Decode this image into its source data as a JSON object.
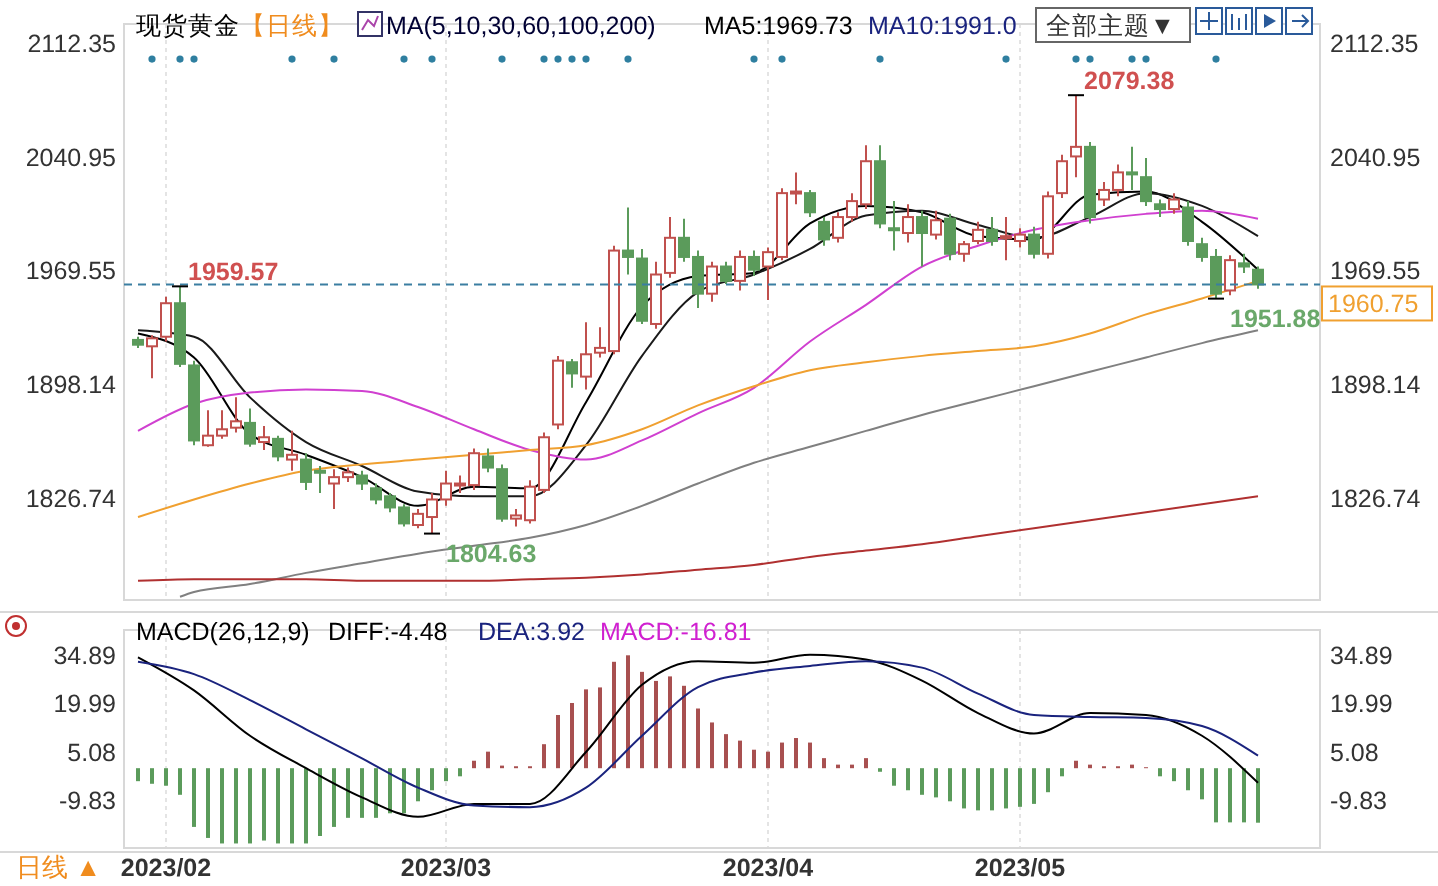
{
  "chart_data": [
    {
      "type": "candlestick",
      "title": "现货黄金",
      "subtitle": "【日线】",
      "legend_title": "MA(5,10,30,60,100,200)",
      "categories": [
        null,
        null,
        "2023/02",
        null,
        null,
        null,
        null,
        null,
        null,
        null,
        null,
        null,
        null,
        null,
        null,
        null,
        null,
        null,
        null,
        null,
        null,
        null,
        "2023/03",
        null,
        null,
        null,
        null,
        null,
        null,
        null,
        null,
        null,
        null,
        null,
        null,
        null,
        null,
        null,
        null,
        null,
        null,
        null,
        null,
        null,
        null,
        "2023/04",
        null,
        null,
        null,
        null,
        null,
        null,
        null,
        null,
        null,
        null,
        null,
        null,
        null,
        null,
        null,
        null,
        null,
        "2023/05",
        null,
        null,
        null,
        null,
        null,
        null,
        null,
        null,
        null,
        null,
        null,
        null,
        null,
        null,
        null,
        null,
        null
      ],
      "ohlc": [
        [
          1926,
          1928,
          1921,
          1923
        ],
        [
          1922,
          1929,
          1902,
          1927
        ],
        [
          1928,
          1953,
          1925,
          1949
        ],
        [
          1949,
          1959.57,
          1909,
          1911
        ],
        [
          1910,
          1913,
          1860,
          1863
        ],
        [
          1860,
          1882,
          1859,
          1866
        ],
        [
          1866,
          1882,
          1864,
          1870
        ],
        [
          1871,
          1890,
          1868,
          1875
        ],
        [
          1874,
          1883,
          1859,
          1861
        ],
        [
          1862,
          1872,
          1857,
          1865
        ],
        [
          1864,
          1866,
          1850,
          1853
        ],
        [
          1851,
          1869,
          1844,
          1854
        ],
        [
          1851,
          1855,
          1832,
          1837
        ],
        [
          1844,
          1847,
          1830,
          1843
        ],
        [
          1836,
          1845,
          1820,
          1840
        ],
        [
          1840,
          1846,
          1837,
          1843
        ],
        [
          1841,
          1844,
          1832,
          1836
        ],
        [
          1833,
          1836,
          1823,
          1826
        ],
        [
          1828,
          1830,
          1818,
          1821
        ],
        [
          1821,
          1823,
          1809,
          1811
        ],
        [
          1810,
          1820,
          1808,
          1817
        ],
        [
          1815,
          1830,
          1804.63,
          1826
        ],
        [
          1826,
          1844,
          1822,
          1836
        ],
        [
          1835,
          1841,
          1830,
          1836
        ],
        [
          1835,
          1858,
          1832,
          1855
        ],
        [
          1853,
          1858,
          1843,
          1846
        ],
        [
          1845,
          1848,
          1812,
          1814
        ],
        [
          1814,
          1820,
          1809,
          1816
        ],
        [
          1813,
          1838,
          1811,
          1834
        ],
        [
          1832,
          1868,
          1830,
          1865
        ],
        [
          1873,
          1916,
          1870,
          1913
        ],
        [
          1912,
          1914,
          1896,
          1905
        ],
        [
          1903,
          1937,
          1895,
          1917
        ],
        [
          1918,
          1934,
          1915,
          1921
        ],
        [
          1919,
          1985,
          1917,
          1982
        ],
        [
          1982,
          2009,
          1967,
          1978
        ],
        [
          1977,
          1983,
          1936,
          1938
        ],
        [
          1936,
          1975,
          1933,
          1967
        ],
        [
          1968,
          2003,
          1965,
          1990
        ],
        [
          1990,
          2002,
          1975,
          1978
        ],
        [
          1978,
          1982,
          1946,
          1955
        ],
        [
          1955,
          1975,
          1950,
          1972
        ],
        [
          1972,
          1975,
          1961,
          1963
        ],
        [
          1963,
          1982,
          1957,
          1978
        ],
        [
          1978,
          1982,
          1966,
          1970
        ],
        [
          1972,
          1984,
          1951,
          1981
        ],
        [
          1978,
          2021,
          1976,
          2018
        ],
        [
          2018,
          2031,
          2011,
          2019
        ],
        [
          2018,
          2020,
          2003,
          2006
        ],
        [
          2000,
          2003,
          1985,
          1989
        ],
        [
          1990,
          2006,
          1987,
          2003
        ],
        [
          2003,
          2018,
          2000,
          2013
        ],
        [
          2011,
          2048,
          2008,
          2038
        ],
        [
          2038,
          2048,
          1996,
          1999
        ],
        [
          1996,
          2013,
          1982,
          1995
        ],
        [
          1993,
          2011,
          1987,
          2003
        ],
        [
          2003,
          2007,
          1972,
          1993
        ],
        [
          1992,
          2007,
          1989,
          2001
        ],
        [
          2002,
          2005,
          1976,
          1980
        ],
        [
          1980,
          1988,
          1975,
          1986
        ],
        [
          1988,
          2000,
          1986,
          1995
        ],
        [
          1995,
          2003,
          1985,
          1988
        ],
        [
          1990,
          2003,
          1976,
          1991
        ],
        [
          1988,
          1996,
          1984,
          1992
        ],
        [
          1992,
          1997,
          1977,
          1980
        ],
        [
          1980,
          2019,
          1977,
          2016
        ],
        [
          2018,
          2042,
          2015,
          2038
        ],
        [
          2041,
          2079.38,
          2028,
          2047
        ],
        [
          2047,
          2050,
          1999,
          2003
        ],
        [
          2014,
          2025,
          2010,
          2020
        ],
        [
          2020,
          2036,
          2016,
          2031
        ],
        [
          2031,
          2047,
          2020,
          2030
        ],
        [
          2028,
          2040,
          2010,
          2013
        ],
        [
          2011,
          2014,
          2003,
          2008
        ],
        [
          2008,
          2018,
          2005,
          2014
        ],
        [
          2009,
          2013,
          1985,
          1988
        ],
        [
          1986,
          1990,
          1975,
          1978
        ],
        [
          1978,
          1983,
          1951.88,
          1955
        ],
        [
          1957,
          1979,
          1954,
          1976
        ],
        [
          1974,
          1980,
          1968,
          1972
        ],
        [
          1970,
          1972,
          1958,
          1960.75
        ]
      ],
      "series": [
        {
          "type": "line",
          "color": "#000000",
          "values": [
            1930,
            null,
            null,
            null,
            1915,
            null,
            null,
            null,
            1867,
            null,
            null,
            null,
            1854,
            null,
            null,
            null,
            1840,
            null,
            null,
            null,
            1822,
            null,
            null,
            null,
            1834,
            null,
            null,
            null,
            1833,
            null,
            null,
            null,
            1887,
            null,
            null,
            null,
            1947,
            null,
            null,
            null,
            1966,
            null,
            null,
            null,
            1968,
            null,
            null,
            null,
            1999,
            null,
            null,
            null,
            2010,
            null,
            null,
            null,
            2006,
            null,
            null,
            null,
            1991,
            null,
            null,
            null,
            1989,
            null,
            null,
            null,
            2017,
            null,
            null,
            null,
            2019,
            null,
            null,
            null,
            2000,
            null,
            null,
            null,
            1970
          ]
        },
        {
          "type": "line",
          "color": "#1a1a1a",
          "values": [
            1932,
            null,
            null,
            null,
            1928,
            null,
            null,
            null,
            1890,
            null,
            null,
            null,
            1862,
            null,
            null,
            null,
            1847,
            null,
            null,
            null,
            1831,
            null,
            null,
            null,
            1828,
            null,
            null,
            null,
            1828,
            null,
            null,
            null,
            1860,
            null,
            null,
            null,
            1916,
            null,
            null,
            null,
            1956,
            null,
            null,
            null,
            1967,
            null,
            null,
            null,
            1983,
            null,
            null,
            null,
            2004,
            null,
            null,
            null,
            2007,
            null,
            null,
            null,
            1998,
            null,
            null,
            null,
            1990,
            null,
            null,
            null,
            2003,
            null,
            null,
            null,
            2018,
            null,
            null,
            null,
            2010,
            null,
            null,
            null,
            1991
          ]
        },
        {
          "type": "line",
          "color": "#d040d0",
          "values": [
            1869,
            null,
            null,
            null,
            1886,
            null,
            null,
            null,
            1893,
            null,
            null,
            null,
            1895,
            null,
            null,
            null,
            1894,
            null,
            null,
            null,
            1884,
            null,
            null,
            null,
            1870,
            null,
            null,
            null,
            1857,
            null,
            null,
            null,
            1851,
            null,
            null,
            null,
            1863,
            null,
            null,
            null,
            1880,
            null,
            null,
            null,
            1896,
            null,
            null,
            null,
            1925,
            null,
            null,
            null,
            1948,
            null,
            null,
            null,
            1972,
            null,
            null,
            null,
            1985,
            null,
            null,
            null,
            1995,
            null,
            null,
            null,
            2001,
            null,
            null,
            null,
            2005,
            null,
            null,
            null,
            2007,
            null,
            null,
            null,
            2002
          ]
        },
        {
          "type": "line",
          "color": "#f0a030",
          "values": [
            1815,
            null,
            null,
            null,
            1826,
            null,
            null,
            null,
            1836,
            null,
            null,
            null,
            1844,
            null,
            null,
            null,
            1848,
            null,
            null,
            null,
            1851,
            null,
            null,
            null,
            1854,
            null,
            null,
            null,
            1857,
            null,
            null,
            null,
            1860,
            null,
            null,
            null,
            1870,
            null,
            null,
            null,
            1885,
            null,
            null,
            null,
            1897,
            null,
            null,
            null,
            1907,
            null,
            null,
            null,
            1912,
            null,
            null,
            null,
            1916,
            null,
            null,
            null,
            1919,
            null,
            null,
            null,
            1922,
            null,
            null,
            null,
            1930,
            null,
            null,
            null,
            1942,
            null,
            null,
            null,
            1952,
            null,
            null,
            null,
            1963
          ]
        },
        {
          "type": "line",
          "color": "#808080",
          "values": [
            null,
            null,
            null,
            1765,
            1768,
            null,
            null,
            null,
            1773,
            null,
            null,
            null,
            1780,
            null,
            null,
            null,
            1786,
            null,
            null,
            null,
            1792,
            null,
            null,
            null,
            1797,
            null,
            null,
            null,
            1802,
            null,
            null,
            null,
            1810,
            null,
            null,
            null,
            1822,
            null,
            null,
            null,
            1836,
            null,
            null,
            null,
            1849,
            null,
            null,
            null,
            1859,
            null,
            null,
            null,
            1869,
            null,
            null,
            null,
            1879,
            null,
            null,
            null,
            1888,
            null,
            null,
            null,
            1897,
            null,
            null,
            null,
            1906,
            null,
            null,
            null,
            1915,
            null,
            null,
            null,
            1924,
            null,
            null,
            null,
            1932
          ]
        },
        {
          "type": "line",
          "color": "#b03030",
          "values": [
            1775,
            null,
            null,
            null,
            1776,
            null,
            null,
            null,
            1776,
            null,
            null,
            null,
            1776,
            null,
            null,
            null,
            1775,
            null,
            null,
            null,
            1775,
            null,
            null,
            null,
            1775,
            null,
            null,
            null,
            1776,
            null,
            null,
            null,
            1777,
            null,
            null,
            null,
            1779,
            null,
            null,
            null,
            1782,
            null,
            null,
            null,
            1785,
            null,
            null,
            null,
            1790,
            null,
            null,
            null,
            1794,
            null,
            null,
            null,
            1798,
            null,
            null,
            null,
            1803,
            null,
            null,
            null,
            1808,
            null,
            null,
            null,
            1813,
            null,
            null,
            null,
            1818,
            null,
            null,
            null,
            1823,
            null,
            null,
            null,
            1828
          ]
        },
        {
          "type": "scatter",
          "color": "#2f7fa0",
          "marker": "circle",
          "values": [
            null,
            2102,
            null,
            2102,
            2102,
            null,
            null,
            null,
            null,
            null,
            null,
            2102,
            null,
            null,
            2102,
            null,
            null,
            null,
            null,
            2102,
            null,
            2102,
            null,
            null,
            null,
            null,
            2102,
            null,
            null,
            2102,
            2102,
            2102,
            2102,
            null,
            null,
            2102,
            null,
            null,
            null,
            null,
            null,
            null,
            null,
            null,
            2102,
            null,
            2102,
            null,
            null,
            null,
            null,
            null,
            null,
            2102,
            null,
            null,
            null,
            null,
            null,
            null,
            null,
            null,
            2102,
            null,
            null,
            null,
            null,
            2102,
            2102,
            null,
            null,
            2102,
            2102,
            null,
            null,
            null,
            null,
            2102,
            null,
            null,
            null
          ]
        }
      ],
      "ylim": [
        1763,
        2124
      ],
      "yticks": [
        1826.74,
        1898.14,
        1969.55,
        2040.95,
        2112.35
      ],
      "y2lim": [
        1763,
        2124
      ],
      "y2ticks": [
        1826.74,
        1898.14,
        1969.55,
        2040.95,
        2112.35
      ],
      "tick_labels": "y",
      "grid": "x",
      "ref_lines": [
        {
          "axis": "y2",
          "value": 1960.75,
          "label": "1960.75",
          "color": "#3b7ea1",
          "line_style": "dashed"
        }
      ],
      "annotations": [
        "1959.57",
        "1804.63",
        "2079.38",
        "1951.88",
        "MA5:1969.73",
        "MA10:1991.0",
        "全部主题▼"
      ]
    },
    {
      "type": "bar",
      "title": "MACD(26,12,9)",
      "xlabel": "日线 ▲",
      "categories": [
        null,
        null,
        "2023/02",
        null,
        null,
        null,
        null,
        null,
        null,
        null,
        null,
        null,
        null,
        null,
        null,
        null,
        null,
        null,
        null,
        null,
        null,
        null,
        "2023/03",
        null,
        null,
        null,
        null,
        null,
        null,
        null,
        null,
        null,
        null,
        null,
        null,
        null,
        null,
        null,
        null,
        null,
        null,
        null,
        null,
        null,
        null,
        "2023/04",
        null,
        null,
        null,
        null,
        null,
        null,
        null,
        null,
        null,
        null,
        null,
        null,
        null,
        null,
        null,
        null,
        null,
        "2023/05",
        null,
        null,
        null,
        null,
        null,
        null,
        null,
        null,
        null,
        null,
        null,
        null,
        null,
        null,
        null,
        null,
        null
      ],
      "series": [
        {
          "type": "bar",
          "values": [
            -4,
            -4.8,
            -5.4,
            -8.2,
            -18.1,
            -21.5,
            -23.2,
            -23.2,
            -23.2,
            -22.3,
            -23.2,
            -23.2,
            -23.2,
            -20.9,
            -18.1,
            -15.3,
            -15.3,
            -15.3,
            -13.9,
            -13.9,
            -10.2,
            -6.8,
            -4,
            -2.5,
            2.3,
            5.1,
            0.8,
            0.6,
            0.6,
            7.4,
            16.4,
            20.1,
            24.3,
            24.9,
            32.8,
            34.8,
            29.7,
            26.9,
            28.3,
            25.4,
            18.4,
            14.1,
            10.5,
            8.5,
            5.7,
            5.1,
            7.9,
            9.3,
            7.9,
            3.1,
            1.1,
            1.1,
            3.1,
            -1.1,
            -5.4,
            -6.8,
            -8.2,
            -9,
            -10.2,
            -12.4,
            -13,
            -13,
            -12.4,
            -11.9,
            -11,
            -7.4,
            -2.5,
            2.3,
            1.1,
            0.6,
            0.6,
            1.1,
            0.3,
            -2.5,
            -4,
            -6.8,
            -9.6,
            -16.7,
            -16.7,
            -16.7,
            -16.8
          ],
          "colors": [
            "#5b9b5b",
            "#5b9b5b",
            "#5b9b5b",
            "#5b9b5b",
            "#5b9b5b",
            "#5b9b5b",
            "#5b9b5b",
            "#5b9b5b",
            "#5b9b5b",
            "#5b9b5b",
            "#5b9b5b",
            "#5b9b5b",
            "#5b9b5b",
            "#5b9b5b",
            "#5b9b5b",
            "#5b9b5b",
            "#5b9b5b",
            "#5b9b5b",
            "#5b9b5b",
            "#5b9b5b",
            "#5b9b5b",
            "#5b9b5b",
            "#5b9b5b",
            "#5b9b5b",
            "#a85050",
            "#a85050",
            "#a85050",
            "#a85050",
            "#a85050",
            "#a85050",
            "#a85050",
            "#a85050",
            "#a85050",
            "#a85050",
            "#a85050",
            "#a85050",
            "#a85050",
            "#a85050",
            "#a85050",
            "#a85050",
            "#a85050",
            "#a85050",
            "#a85050",
            "#a85050",
            "#a85050",
            "#a85050",
            "#a85050",
            "#a85050",
            "#a85050",
            "#a85050",
            "#a85050",
            "#a85050",
            "#a85050",
            "#5b9b5b",
            "#5b9b5b",
            "#5b9b5b",
            "#5b9b5b",
            "#5b9b5b",
            "#5b9b5b",
            "#5b9b5b",
            "#5b9b5b",
            "#5b9b5b",
            "#5b9b5b",
            "#5b9b5b",
            "#5b9b5b",
            "#5b9b5b",
            "#5b9b5b",
            "#a85050",
            "#a85050",
            "#a85050",
            "#a85050",
            "#a85050",
            "#a85050",
            "#5b9b5b",
            "#5b9b5b",
            "#5b9b5b",
            "#5b9b5b",
            "#5b9b5b",
            "#5b9b5b",
            "#5b9b5b",
            "#5b9b5b"
          ]
        },
        {
          "type": "line",
          "color": "#000000",
          "values": [
            34.2,
            null,
            null,
            null,
            24,
            null,
            null,
            null,
            10,
            null,
            null,
            null,
            0,
            null,
            null,
            null,
            -9,
            null,
            null,
            null,
            -15,
            null,
            null,
            null,
            -11,
            null,
            null,
            null,
            -11,
            null,
            null,
            null,
            5,
            null,
            null,
            null,
            25.7,
            null,
            null,
            null,
            33,
            null,
            null,
            null,
            32.5,
            null,
            null,
            null,
            35,
            null,
            null,
            null,
            33.5,
            null,
            null,
            null,
            27,
            null,
            null,
            null,
            17,
            null,
            null,
            null,
            10.7,
            null,
            null,
            null,
            17,
            null,
            null,
            null,
            16.4,
            null,
            null,
            null,
            10,
            null,
            null,
            null,
            -4.5
          ]
        },
        {
          "type": "line",
          "color": "#1a237e",
          "values": [
            32.8,
            null,
            null,
            null,
            29,
            null,
            null,
            null,
            21,
            null,
            null,
            null,
            12,
            null,
            null,
            null,
            3,
            null,
            null,
            null,
            -6,
            null,
            null,
            null,
            -11.5,
            null,
            null,
            null,
            -12,
            null,
            null,
            null,
            -6,
            null,
            null,
            null,
            10,
            null,
            null,
            null,
            25,
            null,
            null,
            null,
            29.5,
            null,
            null,
            null,
            31.5,
            null,
            null,
            null,
            33,
            null,
            null,
            null,
            31,
            null,
            null,
            null,
            23,
            null,
            null,
            null,
            16.4,
            null,
            null,
            null,
            15.8,
            null,
            null,
            null,
            15.5,
            null,
            null,
            null,
            13,
            null,
            null,
            null,
            3.9
          ]
        }
      ],
      "ylim": [
        -24.6,
        42.6
      ],
      "yticks": [
        -9.83,
        5.08,
        19.99,
        34.89
      ],
      "y2lim": [
        -24.6,
        42.6
      ],
      "y2ticks": [
        -9.83,
        5.08,
        19.99,
        34.89
      ],
      "grid": "x",
      "annotations": [
        "DIFF:-4.48",
        "DEA:3.92",
        "MACD:-16.81"
      ]
    }
  ]
}
